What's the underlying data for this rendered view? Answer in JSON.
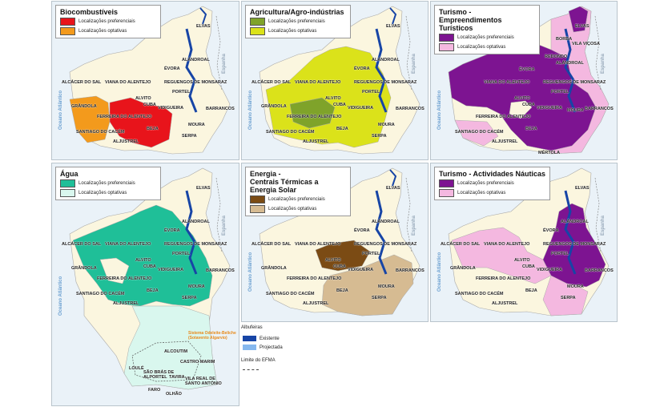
{
  "shared": {
    "sea_label": "Oceano Atlântico",
    "spain_label": "Espanha",
    "cities": [
      "ELVAS",
      "ÉVORA",
      "ALÁNDROAL",
      "ALCÁCER DO SAL",
      "VIANA DO ALENTEJO",
      "REGUENGOS DE MONSARAZ",
      "PORTEL",
      "ALVITO",
      "CUBA",
      "VIDIGUEIRA",
      "GRÂNDOLA",
      "FERREIRA DO ALENTEJO",
      "MOURA",
      "BARRANCOS",
      "BEJA",
      "SERPA",
      "SANTIAGO DO CACÉM",
      "ALJUSTREL"
    ]
  },
  "maps": [
    {
      "id": "biocombustiveis",
      "title": "Biocombustíveis",
      "legend": [
        {
          "label": "Localizações preferenciais",
          "color": "#e8141b"
        },
        {
          "label": "Localizações optativas",
          "color": "#f39a1c"
        }
      ]
    },
    {
      "id": "agricultura",
      "title": "Agricultura/Agro-indústrias",
      "legend": [
        {
          "label": "Localizações preferenciais",
          "color": "#7fa32a"
        },
        {
          "label": "Localizações optativas",
          "color": "#dbe21a"
        }
      ]
    },
    {
      "id": "turismo-empreendimentos",
      "title": "Turismo -\nEmpreendimentos\nTurísticos",
      "legend": [
        {
          "label": "Localizações preferenciais",
          "color": "#7d1491"
        },
        {
          "label": "Localizações optativas",
          "color": "#f4b8e0"
        }
      ],
      "extra_cities": [
        "BORBA",
        "VILA VIÇOSA",
        "REDONDO",
        "MÉRTOLA"
      ]
    },
    {
      "id": "agua",
      "title": "Água",
      "legend": [
        {
          "label": "Localizações preferenciais",
          "color": "#1fbf98"
        },
        {
          "label": "Localizações optativas",
          "color": "#d9f7ee"
        }
      ],
      "note": "Sistema Odeleite-Beliche\n(Sotavento Algarvio)",
      "extra_cities": [
        "ALCOUTIM",
        "CASTRO MARIM",
        "LOULÉ",
        "SÃO BRÁS DE\nALPORTEL",
        "TAVIRA",
        "VILA REAL DE\nSANTO ANTÓNIO",
        "FARO",
        "OLHÃO"
      ]
    },
    {
      "id": "energia",
      "title": "Energia -\nCentrais Térmicas a\nEnergia Solar",
      "legend": [
        {
          "label": "Localizações preferenciais",
          "color": "#7b4b14"
        },
        {
          "label": "Localizações optativas",
          "color": "#d6bb92"
        }
      ]
    },
    {
      "id": "turismo-nauticas",
      "title": "Turismo - Actividades Náuticas",
      "legend": [
        {
          "label": "Localizações preferenciais",
          "color": "#7d1491"
        },
        {
          "label": "Localizações optativas",
          "color": "#f4b8e0"
        }
      ]
    }
  ],
  "footer": {
    "albufeiras_title": "Albufeiras",
    "existente": "Existente",
    "projectada": "Projectada",
    "existente_color": "#1745a6",
    "projectada_color": "#86b8ee",
    "limite": "Limite do EFMA"
  }
}
